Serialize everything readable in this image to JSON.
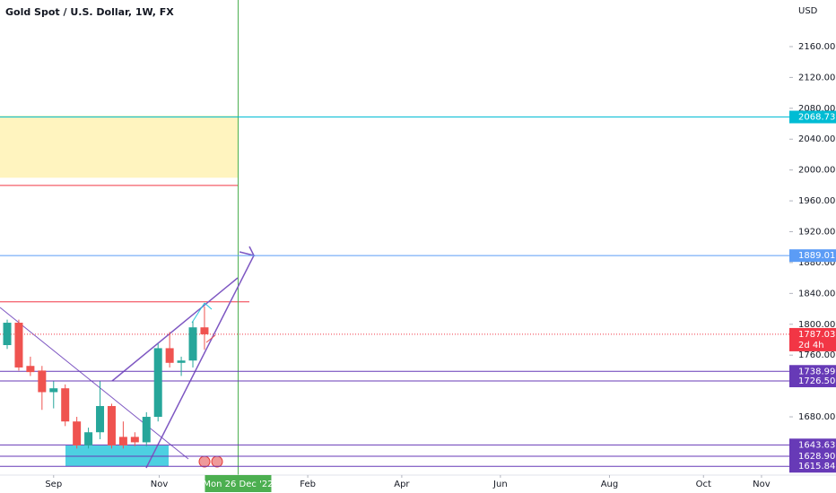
{
  "chart_data": {
    "type": "candlestick",
    "title": "Gold Spot / U.S. Dollar, 1W, FX",
    "currency": "USD",
    "x": [
      0,
      1,
      2,
      3,
      4,
      5,
      6,
      7,
      8,
      9,
      10,
      11,
      12,
      13,
      14,
      15,
      16,
      17
    ],
    "open": [
      1773,
      1802,
      1746,
      1740,
      1712,
      1717,
      1674,
      1643,
      1660,
      1694,
      1654,
      1654,
      1647,
      1680,
      1769,
      1750,
      1753,
      1796
    ],
    "high": [
      1806,
      1806,
      1758,
      1746,
      1726,
      1722,
      1680,
      1666,
      1726,
      1697,
      1674,
      1660,
      1686,
      1775,
      1790,
      1758,
      1804,
      1823
    ],
    "low": [
      1768,
      1740,
      1733,
      1689,
      1691,
      1668,
      1639,
      1639,
      1651,
      1639,
      1639,
      1642,
      1642,
      1674,
      1744,
      1733,
      1744,
      1767
    ],
    "close": [
      1802,
      1744,
      1738,
      1712,
      1717,
      1674,
      1643,
      1660,
      1694,
      1643,
      1643,
      1647,
      1680,
      1769,
      1750,
      1753,
      1796,
      1787.03
    ],
    "up_color": "#26a69a",
    "down_color": "#ef5350",
    "xlim": [
      -0.62,
      67.4
    ],
    "ylim": [
      1604.5,
      2220.4
    ],
    "yticks": [
      {
        "value": 2160,
        "label": "2160.00"
      },
      {
        "value": 2120,
        "label": "2120.00"
      },
      {
        "value": 2080,
        "label": "2080.00"
      },
      {
        "value": 2040,
        "label": "2040.00"
      },
      {
        "value": 2000,
        "label": "2000.00"
      },
      {
        "value": 1960,
        "label": "1960.00"
      },
      {
        "value": 1920,
        "label": "1920.00"
      },
      {
        "value": 1880,
        "label": "1880.00"
      },
      {
        "value": 1840,
        "label": "1840.00"
      },
      {
        "value": 1800,
        "label": "1800.00"
      },
      {
        "value": 1760,
        "label": "1760.00"
      },
      {
        "value": 1680,
        "label": "1680.00"
      }
    ],
    "xticks": [
      {
        "value": 4.0,
        "label": "Sep"
      },
      {
        "value": 13.1,
        "label": "Nov"
      },
      {
        "value": 25.9,
        "label": "Feb"
      },
      {
        "value": 34.0,
        "label": "Apr"
      },
      {
        "value": 42.5,
        "label": "Jun"
      },
      {
        "value": 51.9,
        "label": "Aug"
      },
      {
        "value": 60.0,
        "label": "Oct"
      },
      {
        "value": 65.0,
        "label": "Nov"
      }
    ],
    "crosshair": {
      "value": 19.9,
      "label": "Mon 26 Dec '22",
      "color": "#4caf50"
    },
    "countdown": "2d 4h",
    "levels": [
      {
        "value": 2068.73,
        "label": "2068.73",
        "color": "#00bcd4"
      },
      {
        "value": 1889.01,
        "label": "1889.01",
        "color": "#5b9cf6"
      },
      {
        "value": 1787.03,
        "label": "1787.03",
        "color": "#f23645"
      },
      {
        "value": 1738.99,
        "label": "1738.99",
        "color": "#673ab7"
      },
      {
        "value": 1726.5,
        "label": "1726.50",
        "color": "#673ab7"
      },
      {
        "value": 1643.63,
        "label": "1643.63",
        "color": "#673ab7"
      },
      {
        "value": 1628.9,
        "label": "1628.90",
        "color": "#673ab7"
      },
      {
        "value": 1615.84,
        "label": "1615.84",
        "color": "#673ab7"
      }
    ],
    "zone": [
      1990,
      2070.5
    ],
    "resistance_lines": [
      1980,
      1829
    ]
  }
}
